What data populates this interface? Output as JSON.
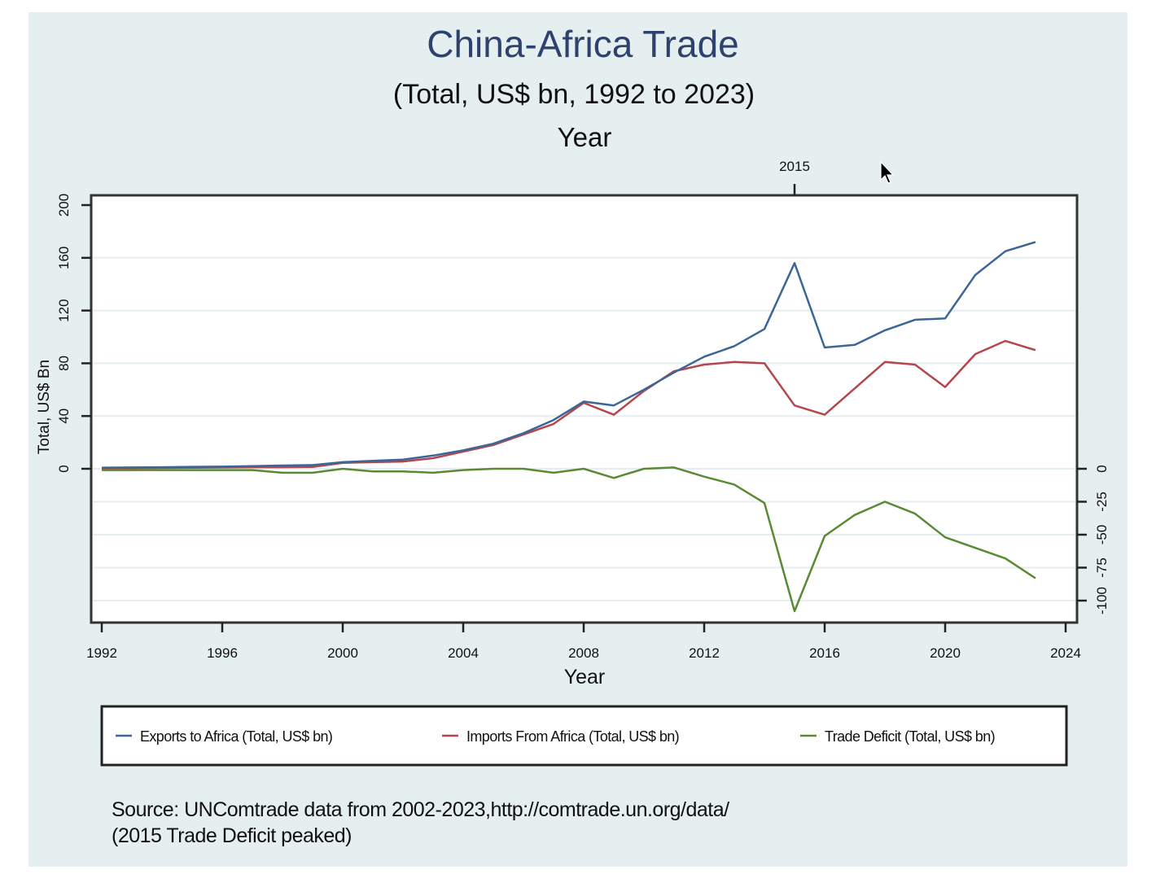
{
  "chart_data": {
    "type": "line",
    "title": "China-Africa Trade",
    "subtitle": "(Total, US$ bn, 1992 to 2023)",
    "top_axis_title": "Year",
    "top_axis_ticks": [
      2015
    ],
    "xlabel": "Year",
    "ylabel": "Total, US$ Bn",
    "xlim": [
      1992,
      2024
    ],
    "xticks": [
      1992,
      1996,
      2000,
      2004,
      2008,
      2012,
      2016,
      2020,
      2024
    ],
    "ylim": [
      0,
      200
    ],
    "yticks": [
      0,
      40,
      80,
      120,
      160,
      200
    ],
    "y2ticks": [
      0,
      -25,
      -50,
      -75,
      -100
    ],
    "grid": true,
    "legend_position": "bottom",
    "x": [
      1992,
      1993,
      1994,
      1995,
      1996,
      1997,
      1998,
      1999,
      2000,
      2001,
      2002,
      2003,
      2004,
      2005,
      2006,
      2007,
      2008,
      2009,
      2010,
      2011,
      2012,
      2013,
      2014,
      2015,
      2016,
      2017,
      2018,
      2019,
      2020,
      2021,
      2022,
      2023
    ],
    "series": [
      {
        "name": "Exports to Africa (Total, US$ bn)",
        "color": "#3a6698",
        "axis": "left",
        "values": [
          0.8,
          1.0,
          1.2,
          1.5,
          1.6,
          2.0,
          2.5,
          2.8,
          5,
          6,
          7,
          10,
          14,
          19,
          27,
          37,
          51,
          48,
          60,
          73,
          85,
          93,
          106,
          156,
          92,
          94,
          105,
          113,
          114,
          147,
          165,
          172
        ]
      },
      {
        "name": "Imports From Africa (Total, US$ bn)",
        "color": "#b5464e",
        "axis": "left",
        "values": [
          0.4,
          0.5,
          0.6,
          0.8,
          0.9,
          1.2,
          1.2,
          1.4,
          4.5,
          5,
          5.5,
          8,
          13,
          18,
          26,
          34,
          50,
          41,
          59,
          74,
          79,
          81,
          80,
          48,
          41,
          61,
          81,
          79,
          62,
          87,
          97,
          90
        ]
      },
      {
        "name": "Trade Deficit (Total, US$ bn)",
        "color": "#5b8a35",
        "axis": "right",
        "values": [
          -1,
          -1,
          -1,
          -1,
          -1,
          -1,
          -3,
          -3,
          0,
          -2,
          -2,
          -3,
          -1,
          0,
          0,
          -3,
          0,
          -7,
          0,
          1,
          -6,
          -12,
          -26,
          -108,
          -51,
          -35,
          -25,
          -34,
          -52,
          -60,
          -68,
          -83
        ]
      }
    ],
    "source": "Source: UNComtrade data from 2002-2023,http://comtrade.un.org/data/",
    "note": "(2015 Trade  Deficit peaked)"
  }
}
